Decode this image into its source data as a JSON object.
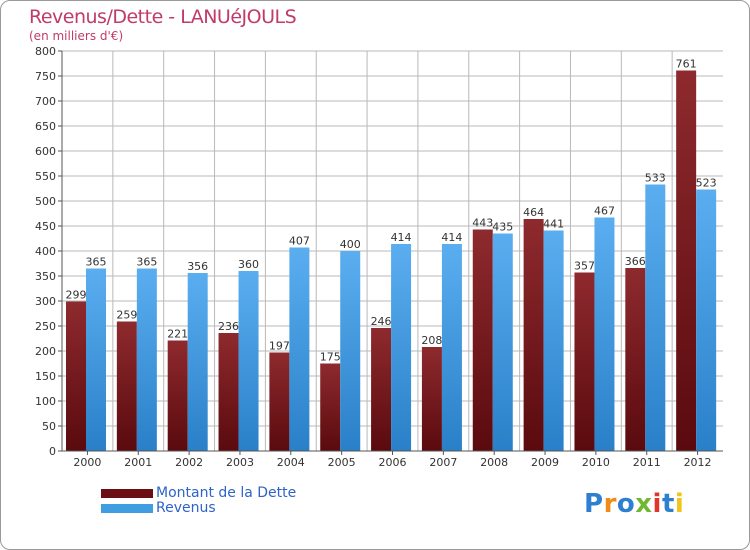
{
  "header": {
    "title": "Revenus/Dette - LANUéJOULS",
    "subtitle": "(en milliers d'€)"
  },
  "colors": {
    "title": "#c03a6b",
    "dette": "#7a1a1f",
    "revenus": "#3f9ee2",
    "legend_text": "#2e63c8",
    "grid": "#b9b9b9"
  },
  "chart_data": {
    "type": "bar",
    "categories": [
      "2000",
      "2001",
      "2002",
      "2003",
      "2004",
      "2005",
      "2006",
      "2007",
      "2008",
      "2009",
      "2010",
      "2011",
      "2012"
    ],
    "series": [
      {
        "name": "Montant de la Dette",
        "values": [
          299,
          259,
          221,
          236,
          197,
          175,
          246,
          208,
          443,
          464,
          357,
          366,
          761
        ]
      },
      {
        "name": "Revenus",
        "values": [
          365,
          365,
          356,
          360,
          407,
          400,
          414,
          414,
          435,
          441,
          467,
          533,
          523
        ]
      }
    ],
    "ylim": [
      0,
      800
    ],
    "yticks": [
      0,
      50,
      100,
      150,
      200,
      250,
      300,
      350,
      400,
      450,
      500,
      550,
      600,
      650,
      700,
      750,
      800
    ],
    "grid": true,
    "legend_position": "bottom-left"
  },
  "legend": {
    "items": [
      {
        "label": "Montant de la Dette",
        "color": "#6b0f14"
      },
      {
        "label": "Revenus",
        "color": "#3f9ee2"
      }
    ]
  },
  "logo": {
    "text": "Proxiti"
  }
}
